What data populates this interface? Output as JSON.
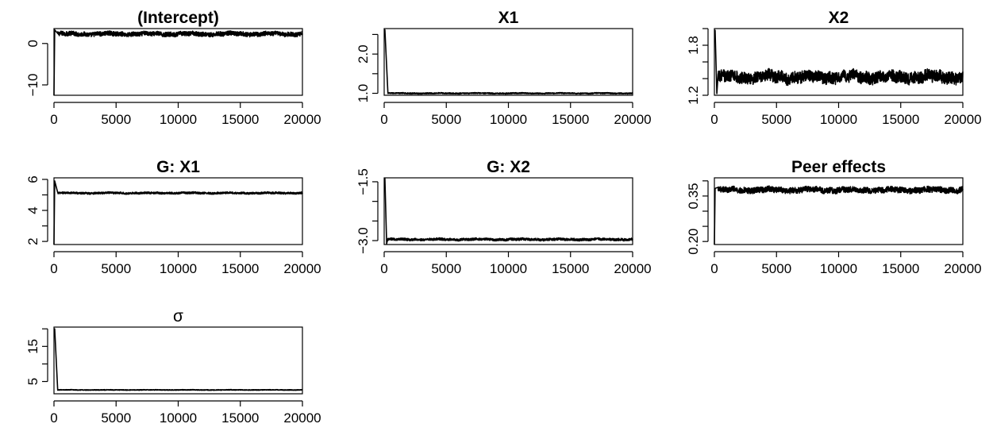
{
  "chart_data": [
    {
      "type": "line",
      "title": "(Intercept)",
      "xlim": [
        0,
        20000
      ],
      "ylim": [
        -12.5,
        3.6
      ],
      "x_ticks": [
        0,
        5000,
        10000,
        15000,
        20000
      ],
      "x_tick_labels": [
        "0",
        "5000",
        "10000",
        "15000",
        "20000"
      ],
      "y_ticks": [
        -10,
        0
      ],
      "y_tick_labels": [
        "−10",
        "0"
      ],
      "series": [
        {
          "start": -12.5,
          "peak": 3.3,
          "level": 2.3,
          "noise": 0.45
        }
      ]
    },
    {
      "type": "line",
      "title": "X1",
      "xlim": [
        0,
        20000
      ],
      "ylim": [
        0.95,
        2.65
      ],
      "x_ticks": [
        0,
        5000,
        10000,
        15000,
        20000
      ],
      "x_tick_labels": [
        "0",
        "5000",
        "10000",
        "15000",
        "20000"
      ],
      "y_ticks": [
        1.0,
        1.5,
        2.0,
        2.5
      ],
      "y_tick_labels": [
        "1.0",
        "",
        "2.0",
        ""
      ],
      "series": [
        {
          "start": 2.62,
          "peak": 2.62,
          "level": 1.0,
          "noise": 0.012
        }
      ]
    },
    {
      "type": "line",
      "title": "X2",
      "xlim": [
        0,
        20000
      ],
      "ylim": [
        1.2,
        2.0
      ],
      "x_ticks": [
        0,
        5000,
        10000,
        15000,
        20000
      ],
      "x_tick_labels": [
        "0",
        "5000",
        "10000",
        "15000",
        "20000"
      ],
      "y_ticks": [
        1.2,
        1.4,
        1.6,
        1.8,
        2.0
      ],
      "y_tick_labels": [
        "1.2",
        "",
        "",
        "1.8",
        ""
      ],
      "series": [
        {
          "start": 1.98,
          "peak": 1.98,
          "level": 1.42,
          "noise": 0.06,
          "dip": 1.22
        }
      ]
    },
    {
      "type": "line",
      "title": "G: X1",
      "xlim": [
        0,
        20000
      ],
      "ylim": [
        1.8,
        6.1
      ],
      "x_ticks": [
        0,
        5000,
        10000,
        15000,
        20000
      ],
      "x_tick_labels": [
        "0",
        "5000",
        "10000",
        "15000",
        "20000"
      ],
      "y_ticks": [
        2,
        3,
        4,
        5,
        6
      ],
      "y_tick_labels": [
        "2",
        "",
        "4",
        "",
        "6"
      ],
      "series": [
        {
          "start": 1.8,
          "peak": 5.9,
          "level": 5.12,
          "noise": 0.05
        }
      ]
    },
    {
      "type": "line",
      "title": "G: X2",
      "xlim": [
        0,
        20000
      ],
      "ylim": [
        -3.1,
        -1.4
      ],
      "x_ticks": [
        0,
        5000,
        10000,
        15000,
        20000
      ],
      "x_tick_labels": [
        "0",
        "5000",
        "10000",
        "15000",
        "20000"
      ],
      "y_ticks": [
        -3.0,
        -2.5,
        -2.0,
        -1.5
      ],
      "y_tick_labels": [
        "−3.0",
        "",
        "",
        "−1.5"
      ],
      "series": [
        {
          "start": -1.42,
          "peak": -1.42,
          "level": -2.97,
          "noise": 0.025,
          "dip": -3.08
        }
      ]
    },
    {
      "type": "line",
      "title": "Peer effects",
      "xlim": [
        0,
        20000
      ],
      "ylim": [
        0.19,
        0.41
      ],
      "x_ticks": [
        0,
        5000,
        10000,
        15000,
        20000
      ],
      "x_tick_labels": [
        "0",
        "5000",
        "10000",
        "15000",
        "20000"
      ],
      "y_ticks": [
        0.2,
        0.25,
        0.3,
        0.35,
        0.4
      ],
      "y_tick_labels": [
        "0.20",
        "",
        "",
        "0.35",
        ""
      ],
      "series": [
        {
          "start": 0.19,
          "peak": 0.375,
          "level": 0.37,
          "noise": 0.008
        }
      ]
    },
    {
      "type": "line",
      "title": "σ",
      "xlim": [
        0,
        20000
      ],
      "ylim": [
        1.5,
        20.5
      ],
      "x_ticks": [
        0,
        5000,
        10000,
        15000,
        20000
      ],
      "x_tick_labels": [
        "0",
        "5000",
        "10000",
        "15000",
        "20000"
      ],
      "y_ticks": [
        5,
        10,
        15,
        20
      ],
      "y_tick_labels": [
        "5",
        "",
        "15",
        ""
      ],
      "series": [
        {
          "start": 20.0,
          "peak": 20.0,
          "level": 2.6,
          "noise": 0.07
        }
      ]
    }
  ]
}
